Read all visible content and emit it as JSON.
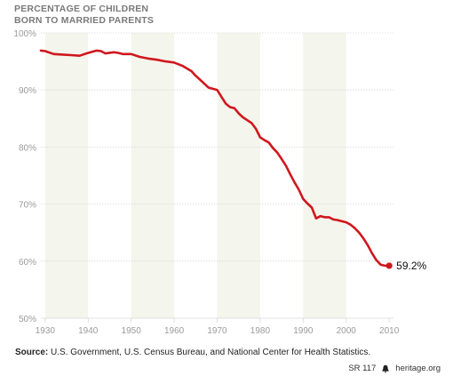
{
  "title_lines": [
    "PERCENTAGE OF CHILDREN",
    "BORN TO MARRIED PARENTS"
  ],
  "source": {
    "label": "Source:",
    "text": "U.S. Government, U.S. Census Bureau, and National Center for Health Statistics."
  },
  "footer": {
    "report": "SR 117",
    "site": "heritage.org",
    "icon": "liberty-bell-icon"
  },
  "colors": {
    "line": "#d0171e",
    "band": "#f4f5ec",
    "grid": "#d7d7d7",
    "tick_text": "#9a9a9a"
  },
  "chart_data": {
    "type": "line",
    "title": "PERCENTAGE OF CHILDREN BORN TO MARRIED PARENTS",
    "xlabel": "",
    "ylabel": "",
    "xlim": [
      1929,
      2011
    ],
    "ylim": [
      50,
      100
    ],
    "x_ticks": [
      1930,
      1940,
      1950,
      1960,
      1970,
      1980,
      1990,
      2000,
      2010
    ],
    "y_ticks": [
      50,
      60,
      70,
      80,
      90,
      100
    ],
    "y_tick_labels": [
      "50%",
      "60%",
      "70%",
      "80%",
      "90%",
      "100%"
    ],
    "shaded_decades": [
      [
        1930,
        1940
      ],
      [
        1950,
        1960
      ],
      [
        1970,
        1980
      ],
      [
        1990,
        2000
      ]
    ],
    "series": [
      {
        "x": [
          1929,
          1930,
          1932,
          1934,
          1936,
          1938,
          1940,
          1942,
          1943,
          1944,
          1946,
          1947,
          1948,
          1950,
          1952,
          1954,
          1956,
          1958,
          1959,
          1960,
          1962,
          1964,
          1965,
          1966,
          1968,
          1969,
          1970,
          1971,
          1972,
          1973,
          1974,
          1975,
          1976,
          1977,
          1978,
          1979,
          1980,
          1981,
          1982,
          1983,
          1984,
          1985,
          1986,
          1987,
          1988,
          1989,
          1990,
          1991,
          1992,
          1993,
          1994,
          1995,
          1996,
          1997,
          1998,
          1999,
          2000,
          2001,
          2002,
          2003,
          2004,
          2005,
          2006,
          2007,
          2008,
          2009,
          2010
        ],
        "y": [
          96.9,
          96.8,
          96.3,
          96.2,
          96.1,
          96.0,
          96.5,
          96.9,
          96.8,
          96.4,
          96.6,
          96.5,
          96.3,
          96.3,
          95.8,
          95.5,
          95.3,
          95.0,
          94.9,
          94.8,
          94.2,
          93.3,
          92.5,
          91.8,
          90.4,
          90.2,
          90.0,
          88.8,
          87.6,
          87.0,
          86.8,
          85.9,
          85.2,
          84.7,
          84.2,
          83.2,
          81.7,
          81.2,
          80.8,
          79.8,
          79.0,
          77.9,
          76.7,
          75.2,
          73.8,
          72.5,
          70.9,
          70.1,
          69.4,
          67.5,
          67.9,
          67.7,
          67.7,
          67.3,
          67.2,
          67.0,
          66.8,
          66.4,
          65.8,
          65.0,
          64.0,
          62.8,
          61.4,
          60.2,
          59.4,
          59.2,
          59.2
        ]
      }
    ],
    "end_label": "59.2%",
    "end_point": {
      "x": 2010,
      "y": 59.2
    }
  }
}
